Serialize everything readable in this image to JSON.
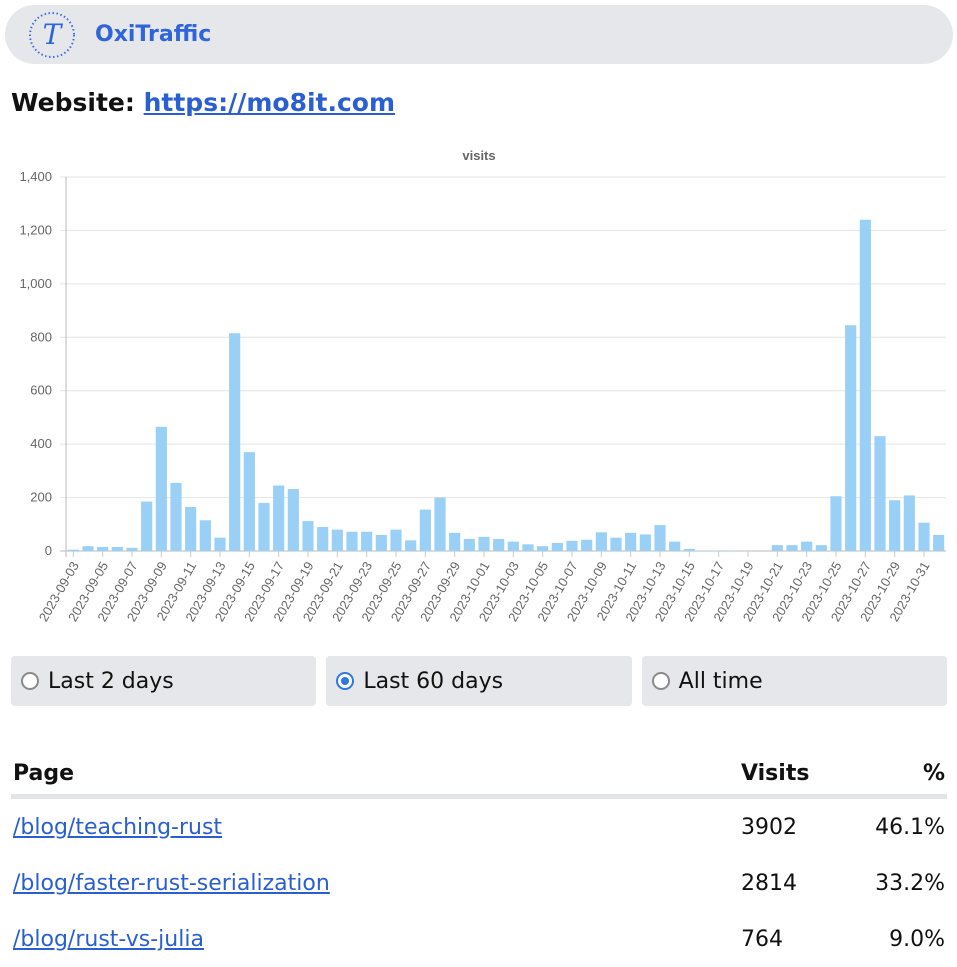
{
  "navbar": {
    "brand": "OxiTraffic",
    "logo_letter": "T"
  },
  "website": {
    "label": "Website:",
    "url": "https://mo8it.com"
  },
  "chart_data": {
    "type": "bar",
    "title": "visits",
    "color": "#9ad0f5",
    "ylim": [
      0,
      1400
    ],
    "yticks": [
      0,
      200,
      400,
      600,
      800,
      1000,
      1200,
      1400
    ],
    "ytick_labels": [
      "0",
      "200",
      "400",
      "600",
      "800",
      "1,000",
      "1,200",
      "1,400"
    ],
    "grid": true,
    "categories": [
      "2023-09-03",
      "2023-09-04",
      "2023-09-05",
      "2023-09-06",
      "2023-09-07",
      "2023-09-08",
      "2023-09-09",
      "2023-09-10",
      "2023-09-11",
      "2023-09-12",
      "2023-09-13",
      "2023-09-14",
      "2023-09-15",
      "2023-09-16",
      "2023-09-17",
      "2023-09-18",
      "2023-09-19",
      "2023-09-20",
      "2023-09-21",
      "2023-09-22",
      "2023-09-23",
      "2023-09-24",
      "2023-09-25",
      "2023-09-26",
      "2023-09-27",
      "2023-09-28",
      "2023-09-29",
      "2023-09-30",
      "2023-10-01",
      "2023-10-02",
      "2023-10-03",
      "2023-10-04",
      "2023-10-05",
      "2023-10-06",
      "2023-10-07",
      "2023-10-08",
      "2023-10-09",
      "2023-10-10",
      "2023-10-11",
      "2023-10-12",
      "2023-10-13",
      "2023-10-14",
      "2023-10-15",
      "2023-10-16",
      "2023-10-17",
      "2023-10-18",
      "2023-10-19",
      "2023-10-20",
      "2023-10-21",
      "2023-10-22",
      "2023-10-23",
      "2023-10-24",
      "2023-10-25",
      "2023-10-26",
      "2023-10-27",
      "2023-10-28",
      "2023-10-29",
      "2023-10-30",
      "2023-10-31",
      "2023-11-01"
    ],
    "x_tick_labels": [
      "2023-09-03",
      "2023-09-05",
      "2023-09-07",
      "2023-09-09",
      "2023-09-11",
      "2023-09-13",
      "2023-09-15",
      "2023-09-17",
      "2023-09-19",
      "2023-09-21",
      "2023-09-23",
      "2023-09-25",
      "2023-09-27",
      "2023-09-29",
      "2023-10-01",
      "2023-10-03",
      "2023-10-05",
      "2023-10-07",
      "2023-10-09",
      "2023-10-11",
      "2023-10-13",
      "2023-10-15",
      "2023-10-17",
      "2023-10-19",
      "2023-10-21",
      "2023-10-23",
      "2023-10-25",
      "2023-10-27",
      "2023-10-29",
      "2023-10-31"
    ],
    "values": [
      5,
      18,
      15,
      15,
      12,
      185,
      465,
      255,
      165,
      115,
      50,
      815,
      370,
      180,
      245,
      232,
      112,
      90,
      80,
      72,
      72,
      60,
      80,
      40,
      155,
      200,
      68,
      45,
      53,
      45,
      35,
      25,
      18,
      30,
      38,
      42,
      70,
      50,
      68,
      62,
      97,
      35,
      8,
      2,
      1,
      1,
      0,
      0,
      22,
      22,
      35,
      22,
      205,
      845,
      1240,
      430,
      190,
      208,
      106,
      60
    ]
  },
  "range_options": [
    {
      "label": "Last 2 days",
      "checked": false
    },
    {
      "label": "Last 60 days",
      "checked": true
    },
    {
      "label": "All time",
      "checked": false
    }
  ],
  "table": {
    "headers": {
      "page": "Page",
      "visits": "Visits",
      "percent": "%"
    },
    "rows": [
      {
        "page": "/blog/teaching-rust",
        "visits": "3902",
        "percent": "46.1%"
      },
      {
        "page": "/blog/faster-rust-serialization",
        "visits": "2814",
        "percent": "33.2%"
      },
      {
        "page": "/blog/rust-vs-julia",
        "visits": "764",
        "percent": "9.0%"
      }
    ]
  }
}
